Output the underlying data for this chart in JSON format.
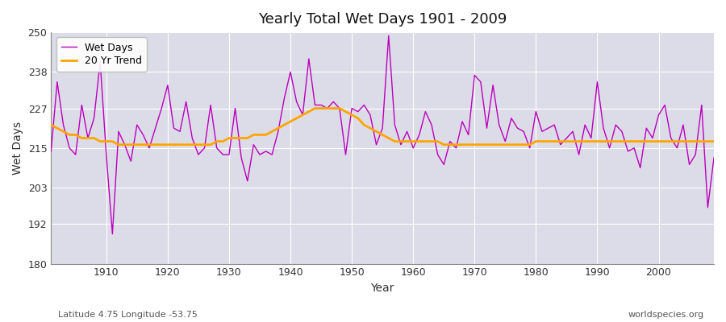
{
  "title": "Yearly Total Wet Days 1901 - 2009",
  "xlabel": "Year",
  "ylabel": "Wet Days",
  "subtitle_left": "Latitude 4.75 Longitude -53.75",
  "subtitle_right": "worldspecies.org",
  "ylim": [
    180,
    250
  ],
  "yticks": [
    180,
    192,
    203,
    215,
    227,
    238,
    250
  ],
  "line_color": "#bb00bb",
  "trend_color": "#ffa500",
  "bg_color": "#dcdce8",
  "years": [
    1901,
    1902,
    1903,
    1904,
    1905,
    1906,
    1907,
    1908,
    1909,
    1910,
    1911,
    1912,
    1913,
    1914,
    1915,
    1916,
    1917,
    1918,
    1919,
    1920,
    1921,
    1922,
    1923,
    1924,
    1925,
    1926,
    1927,
    1928,
    1929,
    1930,
    1931,
    1932,
    1933,
    1934,
    1935,
    1936,
    1937,
    1938,
    1939,
    1940,
    1941,
    1942,
    1943,
    1944,
    1945,
    1946,
    1947,
    1948,
    1949,
    1950,
    1951,
    1952,
    1953,
    1954,
    1955,
    1956,
    1957,
    1958,
    1959,
    1960,
    1961,
    1962,
    1963,
    1964,
    1965,
    1966,
    1967,
    1968,
    1969,
    1970,
    1971,
    1972,
    1973,
    1974,
    1975,
    1976,
    1977,
    1978,
    1979,
    1980,
    1981,
    1982,
    1983,
    1984,
    1985,
    1986,
    1987,
    1988,
    1989,
    1990,
    1991,
    1992,
    1993,
    1994,
    1995,
    1996,
    1997,
    1998,
    1999,
    2000,
    2001,
    2002,
    2003,
    2004,
    2005,
    2006,
    2007,
    2008,
    2009
  ],
  "wet_days": [
    214,
    235,
    222,
    215,
    213,
    228,
    218,
    224,
    241,
    213,
    189,
    220,
    216,
    211,
    222,
    219,
    215,
    221,
    227,
    234,
    221,
    220,
    229,
    218,
    213,
    215,
    228,
    215,
    213,
    213,
    227,
    212,
    205,
    216,
    213,
    214,
    213,
    220,
    230,
    238,
    229,
    225,
    242,
    228,
    228,
    227,
    229,
    227,
    213,
    227,
    226,
    228,
    225,
    216,
    221,
    249,
    222,
    216,
    220,
    215,
    219,
    226,
    222,
    213,
    210,
    217,
    215,
    223,
    219,
    237,
    235,
    221,
    234,
    222,
    217,
    224,
    221,
    220,
    215,
    226,
    220,
    221,
    222,
    216,
    218,
    220,
    213,
    222,
    218,
    235,
    221,
    215,
    222,
    220,
    214,
    215,
    209,
    221,
    218,
    225,
    228,
    218,
    215,
    222,
    210,
    213,
    228,
    197,
    212
  ],
  "trend_years": [
    1901,
    1902,
    1903,
    1904,
    1905,
    1906,
    1907,
    1908,
    1909,
    1910,
    1911,
    1912,
    1913,
    1914,
    1915,
    1916,
    1917,
    1918,
    1919,
    1920,
    1921,
    1922,
    1923,
    1924,
    1925,
    1926,
    1927,
    1928,
    1929,
    1930,
    1931,
    1932,
    1933,
    1934,
    1935,
    1936,
    1937,
    1938,
    1939,
    1940,
    1941,
    1942,
    1943,
    1944,
    1945,
    1946,
    1947,
    1948,
    1949,
    1950,
    1951,
    1952,
    1953,
    1954,
    1955,
    1956,
    1957,
    1958,
    1959,
    1960,
    1961,
    1962,
    1963,
    1964,
    1965,
    1966,
    1967,
    1968,
    1969,
    1970,
    1971,
    1972,
    1973,
    1974,
    1975,
    1976,
    1977,
    1978,
    1979,
    1980,
    1981,
    1982,
    1983,
    1984,
    1985,
    1986,
    1987,
    1988,
    1989,
    1990,
    1991,
    1992,
    1993,
    1994,
    1995,
    1996,
    1997,
    1998,
    1999,
    2000,
    2001,
    2002,
    2003,
    2004,
    2005,
    2006,
    2007,
    2008,
    2009
  ],
  "trend_values": [
    222,
    221,
    220,
    219,
    219,
    218,
    218,
    218,
    217,
    217,
    217,
    216,
    216,
    216,
    216,
    216,
    216,
    216,
    216,
    216,
    216,
    216,
    216,
    216,
    216,
    216,
    216,
    217,
    217,
    218,
    218,
    218,
    218,
    219,
    219,
    219,
    220,
    221,
    222,
    223,
    224,
    225,
    226,
    227,
    227,
    227,
    227,
    227,
    226,
    225,
    224,
    222,
    221,
    220,
    219,
    218,
    217,
    217,
    217,
    217,
    217,
    217,
    217,
    217,
    216,
    216,
    216,
    216,
    216,
    216,
    216,
    216,
    216,
    216,
    216,
    216,
    216,
    216,
    216,
    217,
    217,
    217,
    217,
    217,
    217,
    217,
    217,
    217,
    217,
    217,
    217,
    217,
    217,
    217,
    217,
    217,
    217,
    217,
    217,
    217,
    217,
    217,
    217,
    217,
    217,
    217,
    217,
    217,
    217
  ]
}
